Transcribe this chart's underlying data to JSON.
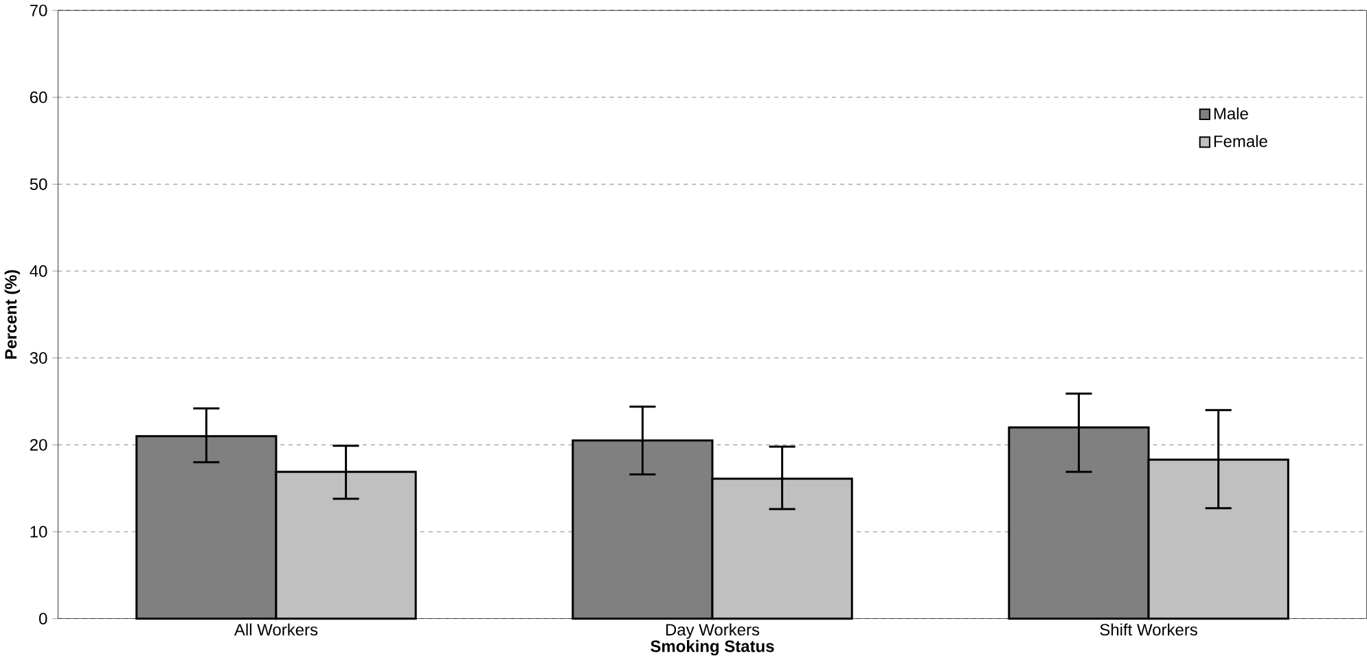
{
  "chart_data": {
    "type": "bar",
    "xlabel": "Smoking Status",
    "ylabel": "Percent (%)",
    "categories": [
      "All Workers",
      "Day Workers",
      "Shift Workers"
    ],
    "series": [
      {
        "name": "Male",
        "color": "#808080",
        "values": [
          21.0,
          20.5,
          22.0
        ],
        "errors": [
          [
            18.0,
            24.2
          ],
          [
            16.6,
            24.4
          ],
          [
            16.9,
            25.9
          ]
        ]
      },
      {
        "name": "Female",
        "color": "#c0c0c0",
        "values": [
          16.9,
          16.1,
          18.3
        ],
        "errors": [
          [
            13.8,
            19.9
          ],
          [
            12.6,
            19.8
          ],
          [
            12.7,
            24.0
          ]
        ]
      }
    ],
    "ylim": [
      0,
      70
    ],
    "yticks": [
      0,
      10,
      20,
      30,
      40,
      50,
      60,
      70
    ],
    "grid": "y",
    "legend": "top right"
  }
}
